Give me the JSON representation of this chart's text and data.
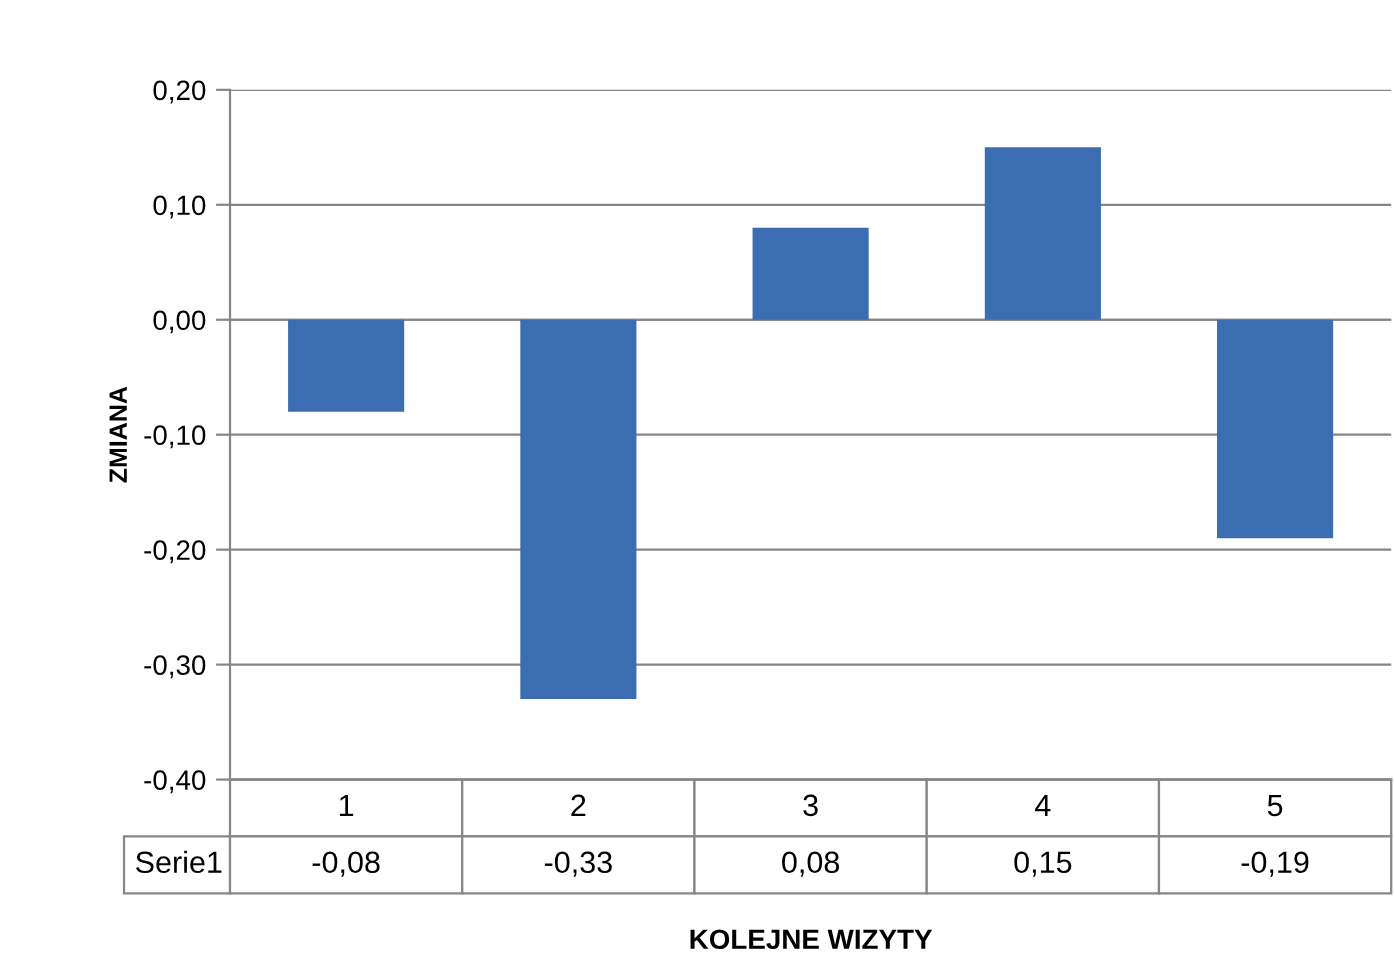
{
  "chart_data": {
    "type": "bar",
    "xlabel": "KOLEJNE WIZYTY",
    "ylabel": "ZMIANA",
    "categories": [
      "1",
      "2",
      "3",
      "4",
      "5"
    ],
    "series": [
      {
        "name": "Serie1",
        "color": "#3b6db3",
        "values": [
          -0.08,
          -0.33,
          0.08,
          0.15,
          -0.19
        ],
        "value_labels": [
          "-0,08",
          "-0,33",
          "0,08",
          "0,15",
          "-0,19"
        ]
      }
    ],
    "ylim": [
      -0.4,
      0.2
    ],
    "yticks": [
      {
        "value": -0.4,
        "label": "-0,40"
      },
      {
        "value": -0.3,
        "label": "-0,30"
      },
      {
        "value": -0.2,
        "label": "-0,20"
      },
      {
        "value": -0.1,
        "label": "-0,10"
      },
      {
        "value": 0,
        "label": "0,00"
      },
      {
        "value": 0.1,
        "label": "0,10"
      },
      {
        "value": 0.2,
        "label": "0,20"
      }
    ],
    "grid": "y",
    "legend": false
  }
}
